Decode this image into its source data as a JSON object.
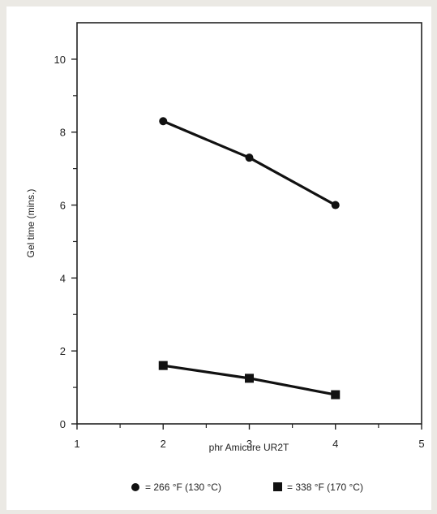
{
  "chart_data": {
    "type": "line",
    "title": "",
    "xlabel": "phr Amicure UR2T",
    "ylabel": "Gel time (mins.)",
    "xlim": [
      1,
      5
    ],
    "ylim": [
      0,
      11
    ],
    "x_ticks": [
      1,
      2,
      3,
      4,
      5
    ],
    "y_ticks": [
      0,
      2,
      4,
      6,
      8,
      10
    ],
    "grid": false,
    "legend_position": "bottom",
    "series": [
      {
        "name": "= 266 °F (130 °C)",
        "marker": "circle",
        "color": "#111111",
        "x": [
          2,
          3,
          4
        ],
        "y": [
          8.3,
          7.3,
          6.0
        ]
      },
      {
        "name": "= 338 °F (170 °C)",
        "marker": "square",
        "color": "#111111",
        "x": [
          2,
          3,
          4
        ],
        "y": [
          1.6,
          1.25,
          0.8
        ]
      }
    ]
  }
}
